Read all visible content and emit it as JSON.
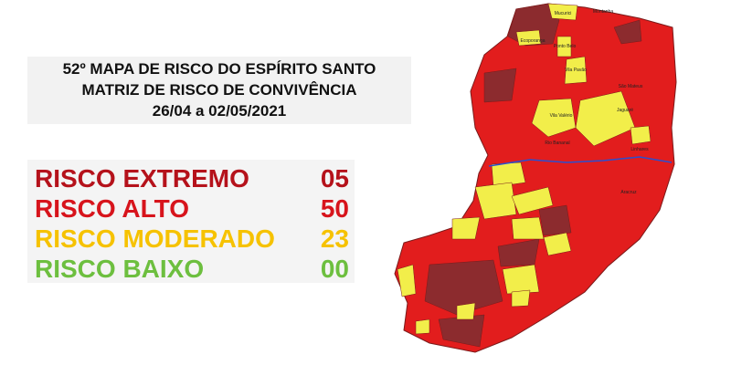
{
  "header": {
    "lines": [
      "52º MAPA DE RISCO DO ESPÍRITO SANTO",
      "MATRIZ DE RISCO DE CONVIVÊNCIA",
      "26/04 a 02/05/2021"
    ]
  },
  "legend": [
    {
      "label": "RISCO EXTREMO",
      "count": "05",
      "color": "#b5121b"
    },
    {
      "label": "RISCO ALTO",
      "count": "50",
      "color": "#d7141c"
    },
    {
      "label": "RISCO MODERADO",
      "count": "23",
      "color": "#f6c200"
    },
    {
      "label": "RISCO BAIXO",
      "count": "00",
      "color": "#6dbf3f"
    }
  ],
  "map": {
    "extreme_color": "#8c2b2e",
    "high_color": "#e21d1d",
    "moderate_color": "#f2ee4a",
    "labels": [
      "Mucurici",
      "Montanha",
      "Ecoporanga",
      "Ponto Belo",
      "Vila Pavão",
      "São Mateus",
      "Jaguaré",
      "Linhares",
      "Aracruz",
      "Vila Valério",
      "Rio Bananal"
    ]
  }
}
